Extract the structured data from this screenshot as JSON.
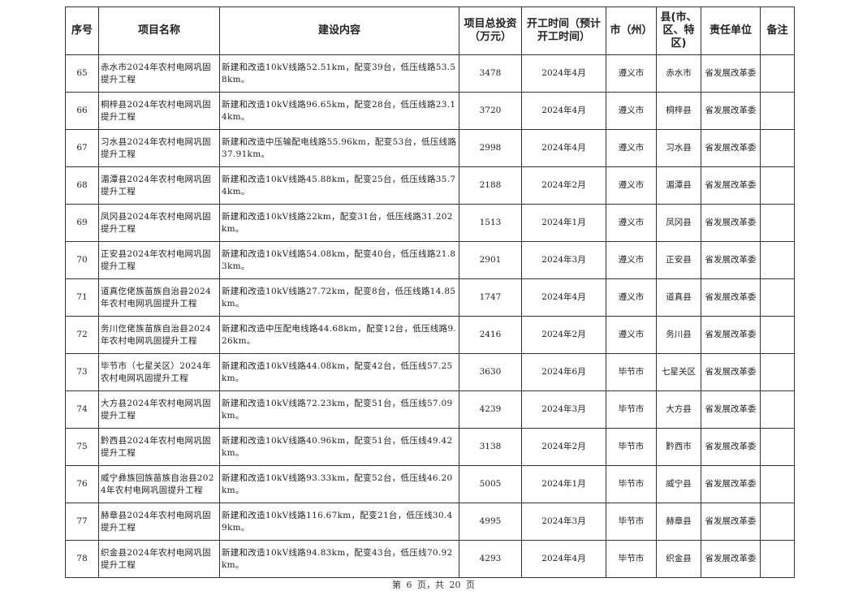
{
  "headers": [
    "序号",
    "项目名称",
    "建设内容",
    "项目总投资（万元）",
    "开工时间（预计开工时间）",
    "市（州）",
    "县(市、区、特区)",
    "责任单位",
    "备注"
  ],
  "rows": [
    {
      "no": "65",
      "name": "赤水市2024年农村电网巩固提升工程",
      "content": "新建和改造10kV线路52.51km，配变39台，低压线路53.58km。",
      "investment": "3478",
      "start": "2024年4月",
      "city": "遵义市",
      "county": "赤水市",
      "unit": "省发展改革委",
      "note": ""
    },
    {
      "no": "66",
      "name": "桐梓县2024年农村电网巩固提升工程",
      "content": "新建和改造10kV线路96.65km，配变28台，低压线路23.14km。",
      "investment": "3720",
      "start": "2024年4月",
      "city": "遵义市",
      "county": "桐梓县",
      "unit": "省发展改革委",
      "note": ""
    },
    {
      "no": "67",
      "name": "习水县2024年农村电网巩固提升工程",
      "content": "新建和改造中压输配电线路55.96km，配变53台，低压线路37.91km。",
      "investment": "2998",
      "start": "2024年4月",
      "city": "遵义市",
      "county": "习水县",
      "unit": "省发展改革委",
      "note": ""
    },
    {
      "no": "68",
      "name": "湄潭县2024年农村电网巩固提升工程",
      "content": "新建和改造10kV线路45.88km，配变25台，低压线路35.74km。",
      "investment": "2188",
      "start": "2024年2月",
      "city": "遵义市",
      "county": "湄潭县",
      "unit": "省发展改革委",
      "note": ""
    },
    {
      "no": "69",
      "name": "凤冈县2024年农村电网巩固提升工程",
      "content": "新建和改造10kV线路22km，配变31台，低压线路31.202km。",
      "investment": "1513",
      "start": "2024年1月",
      "city": "遵义市",
      "county": "凤冈县",
      "unit": "省发展改革委",
      "note": ""
    },
    {
      "no": "70",
      "name": "正安县2024年农村电网巩固提升工程",
      "content": "新建和改造10kV线路54.08km，配变40台，低压线路21.83km。",
      "investment": "2901",
      "start": "2024年3月",
      "city": "遵义市",
      "county": "正安县",
      "unit": "省发展改革委",
      "note": ""
    },
    {
      "no": "71",
      "name": "道真仡佬族苗族自治县2024年农村电网巩固提升工程",
      "content": "新建和改造10kV线路27.72km，配变8台，低压线路14.85km。",
      "investment": "1747",
      "start": "2024年4月",
      "city": "遵义市",
      "county": "道真县",
      "unit": "省发展改革委",
      "note": ""
    },
    {
      "no": "72",
      "name": "务川仡佬族苗族自治县2024年农村电网巩固提升工程",
      "content": "新建和改造中压配电线路44.68km，配变12台，低压线路9.26km。",
      "investment": "2416",
      "start": "2024年2月",
      "city": "遵义市",
      "county": "务川县",
      "unit": "省发展改革委",
      "note": ""
    },
    {
      "no": "73",
      "name": "毕节市（七星关区）2024年农村电网巩固提升工程",
      "content": "新建和改造10kV线路44.08km，配变42台，低压线57.25km。",
      "investment": "3630",
      "start": "2024年6月",
      "city": "毕节市",
      "county": "七星关区",
      "unit": "省发展改革委",
      "note": ""
    },
    {
      "no": "74",
      "name": "大方县2024年农村电网巩固提升工程",
      "content": "新建和改造10kV线路72.23km，配变51台，低压线57.09km。",
      "investment": "4239",
      "start": "2024年3月",
      "city": "毕节市",
      "county": "大方县",
      "unit": "省发展改革委",
      "note": ""
    },
    {
      "no": "75",
      "name": "黔西县2024年农村电网巩固提升工程",
      "content": "新建和改造10kV线路40.96km，配变51台，低压线49.42km。",
      "investment": "3138",
      "start": "2024年2月",
      "city": "毕节市",
      "county": "黔西市",
      "unit": "省发展改革委",
      "note": ""
    },
    {
      "no": "76",
      "name": "威宁彝族回族苗族自治县2024年农村电网巩固提升工程",
      "content": "新建和改造10kV线路93.33km，配变52台，低压线46.20km。",
      "investment": "5005",
      "start": "2024年1月",
      "city": "毕节市",
      "county": "威宁县",
      "unit": "省发展改革委",
      "note": ""
    },
    {
      "no": "77",
      "name": "赫章县2024年农村电网巩固提升工程",
      "content": "新建和改造10kV线路116.67km，配变21台，低压线30.49km。",
      "investment": "4995",
      "start": "2024年3月",
      "city": "毕节市",
      "county": "赫章县",
      "unit": "省发展改革委",
      "note": ""
    },
    {
      "no": "78",
      "name": "织金县2024年农村电网巩固提升工程",
      "content": "新建和改造10kV线路94.83km，配变43台，低压线70.92km。",
      "investment": "4293",
      "start": "2024年4月",
      "city": "毕节市",
      "county": "织金县",
      "unit": "省发展改革委",
      "note": ""
    }
  ],
  "footer": "第 6 页，共 20 页"
}
